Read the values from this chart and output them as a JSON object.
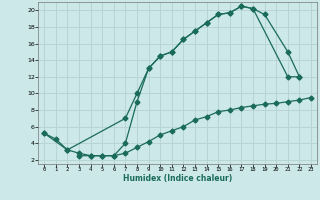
{
  "xlabel": "Humidex (Indice chaleur)",
  "bg_color": "#cce8e8",
  "grid_color": "#b8d4d4",
  "line_color": "#1a6b5a",
  "xlim": [
    -0.5,
    23.5
  ],
  "ylim": [
    1.5,
    21.0
  ],
  "yticks": [
    2,
    4,
    6,
    8,
    10,
    12,
    14,
    16,
    18,
    20
  ],
  "xticks": [
    0,
    1,
    2,
    3,
    4,
    5,
    6,
    7,
    8,
    9,
    10,
    11,
    12,
    13,
    14,
    15,
    16,
    17,
    18,
    19,
    20,
    21,
    22,
    23
  ],
  "line1_x": [
    0,
    1,
    2,
    7,
    8,
    9,
    10,
    11,
    12,
    13,
    14,
    15,
    16,
    17,
    18,
    21,
    22
  ],
  "line1_y": [
    5.2,
    4.5,
    3.2,
    7.0,
    10.0,
    13.0,
    14.5,
    15.0,
    16.5,
    17.5,
    18.5,
    19.5,
    19.7,
    20.5,
    20.2,
    12.0,
    12.0
  ],
  "line2_x": [
    0,
    2,
    3,
    4,
    5,
    6,
    7,
    8,
    9,
    10,
    11,
    12,
    13,
    14,
    15,
    16,
    17,
    18,
    19,
    21,
    22
  ],
  "line2_y": [
    5.2,
    3.2,
    2.8,
    2.5,
    2.5,
    2.5,
    4.0,
    9.0,
    13.0,
    14.5,
    15.0,
    16.5,
    17.5,
    18.5,
    19.5,
    19.7,
    20.5,
    20.2,
    19.5,
    15.0,
    12.0
  ],
  "line3_x": [
    3,
    4,
    5,
    6,
    7,
    8,
    9,
    10,
    11,
    12,
    13,
    14,
    15,
    16,
    17,
    18,
    19,
    20,
    21,
    22,
    23
  ],
  "line3_y": [
    2.5,
    2.5,
    2.5,
    2.5,
    2.8,
    3.5,
    4.2,
    5.0,
    5.5,
    6.0,
    6.8,
    7.2,
    7.8,
    8.0,
    8.3,
    8.5,
    8.7,
    8.8,
    9.0,
    9.2,
    9.5
  ]
}
